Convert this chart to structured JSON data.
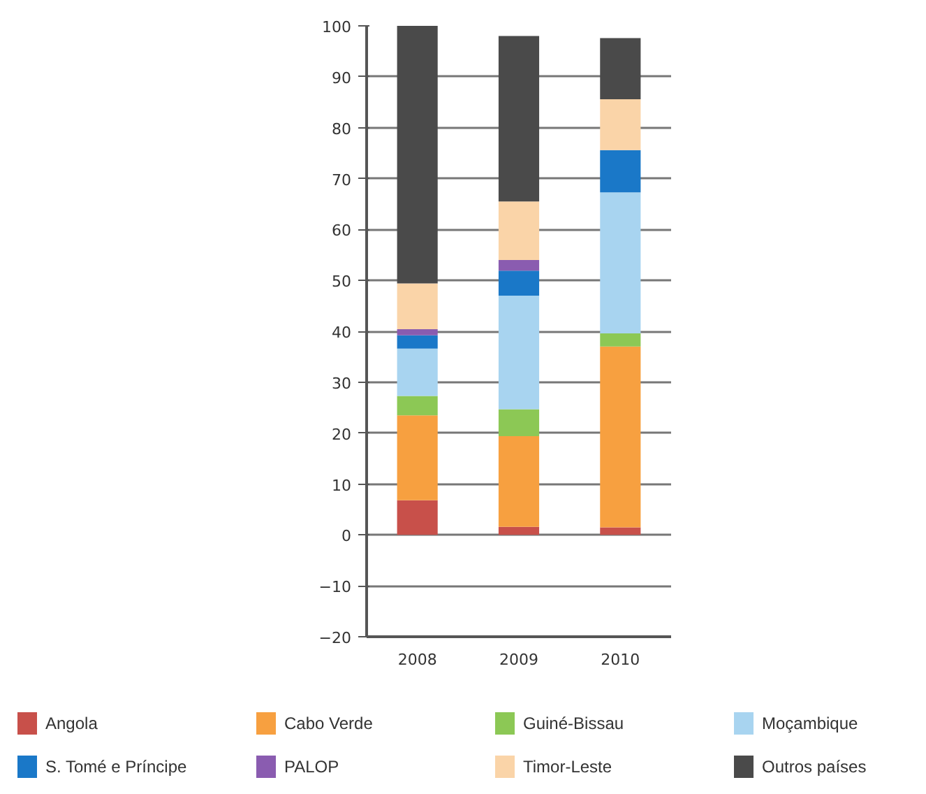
{
  "chart_data": {
    "type": "bar",
    "stacked": true,
    "categories": [
      "2008",
      "2009",
      "2010"
    ],
    "series": [
      {
        "name": "Angola",
        "color": "#c8504a",
        "values": [
          6.8,
          1.6,
          1.5
        ]
      },
      {
        "name": "Cabo Verde",
        "color": "#f7a040",
        "values": [
          16.7,
          17.8,
          35.5
        ]
      },
      {
        "name": "Guiné-Bissau",
        "color": "#8cc855",
        "values": [
          3.8,
          5.3,
          2.6
        ]
      },
      {
        "name": "Moçambique",
        "color": "#a8d4f0",
        "values": [
          9.3,
          22.3,
          27.7
        ]
      },
      {
        "name": "S. Tomé e Príncipe",
        "color": "#1a78c8",
        "values": [
          2.6,
          4.9,
          8.3
        ]
      },
      {
        "name": "PALOP",
        "color": "#8a5cb0",
        "values": [
          1.2,
          2.1,
          0
        ]
      },
      {
        "name": "Timor-Leste",
        "color": "#fad4a8",
        "values": [
          9.0,
          11.5,
          10.0
        ]
      },
      {
        "name": "Outros países",
        "color": "#4a4a4a",
        "values": [
          50.6,
          32.5,
          12.0
        ]
      }
    ],
    "ylim": [
      -20,
      100
    ],
    "yticks": [
      -20,
      -10,
      0,
      10,
      20,
      30,
      40,
      50,
      60,
      70,
      80,
      90,
      100
    ],
    "grid": "y",
    "legend": "bottom"
  }
}
